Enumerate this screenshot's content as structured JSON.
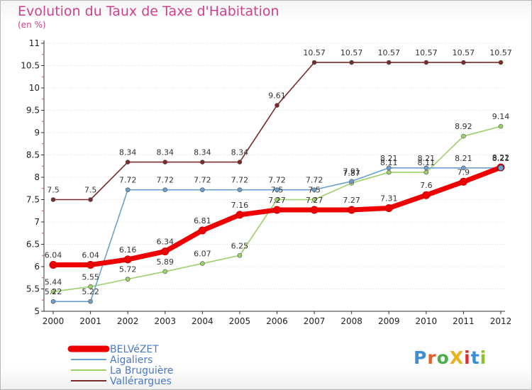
{
  "title": "Evolution du Taux de Taxe d'Habitation",
  "subtitle": "(en %)",
  "logo": {
    "text": "ProXiti",
    "letters": [
      "P",
      "r",
      "o",
      "X",
      "i",
      "t",
      "i"
    ],
    "colors": [
      "#3a8fd8",
      "#e85c2a",
      "#4aae4a",
      "#e8b21c",
      "#d83030",
      "#3a8fd8",
      "#8ac030"
    ]
  },
  "chart_data": {
    "type": "line",
    "title": "Evolution du Taux de Taxe d'Habitation",
    "subtitle": "(en %)",
    "x": [
      "2000",
      "2001",
      "2002",
      "2003",
      "2004",
      "2005",
      "2006",
      "2007",
      "2008",
      "2009",
      "2010",
      "2011",
      "2012"
    ],
    "ylim": [
      5,
      11
    ],
    "yticks": [
      "5",
      "5.5",
      "6",
      "6.5",
      "7",
      "7.5",
      "8",
      "8.5",
      "9",
      "9.5",
      "10",
      "10.5",
      "11"
    ],
    "legend_position": "bottom-left",
    "series": [
      {
        "name": "Vallérargues",
        "color": "#7a2a2a",
        "values": [
          7.5,
          7.5,
          8.34,
          8.34,
          8.34,
          8.34,
          9.61,
          10.57,
          10.57,
          10.57,
          10.57,
          10.57,
          10.57
        ],
        "labels": [
          "7.5",
          "7.5",
          "8.34",
          "8.34",
          "8.34",
          "8.34",
          "9.61",
          "10.57",
          "10.57",
          "10.57",
          "10.57",
          "10.57",
          "10.57"
        ]
      },
      {
        "name": "La Bruguière",
        "color": "#9dd06a",
        "values": [
          5.44,
          5.55,
          5.72,
          5.89,
          6.07,
          6.25,
          7.5,
          7.5,
          7.87,
          8.11,
          8.11,
          8.92,
          9.14
        ],
        "labels": [
          "5.44",
          "5.55",
          "5.72",
          "5.89",
          "6.07",
          "6.25",
          "7.5",
          "7.5",
          "7.87",
          "8.11",
          "8.11",
          "8.92",
          "9.14"
        ]
      },
      {
        "name": "Aigaliers",
        "color": "#6a9fcf",
        "values": [
          5.22,
          5.22,
          7.72,
          7.72,
          7.72,
          7.72,
          7.72,
          7.72,
          7.91,
          8.21,
          8.21,
          8.21,
          8.21
        ],
        "labels": [
          "5.22",
          "5.22",
          "7.72",
          "7.72",
          "7.72",
          "7.72",
          "7.72",
          "7.72",
          "7.91",
          "8.21",
          "8.21",
          "8.21",
          "8.21"
        ]
      },
      {
        "name": "BELVéZET",
        "color": "#ee0000",
        "values": [
          6.04,
          6.04,
          6.16,
          6.34,
          6.81,
          7.16,
          7.27,
          7.27,
          7.27,
          7.31,
          7.6,
          7.9,
          8.22
        ],
        "labels": [
          "6.04",
          "6.04",
          "6.16",
          "6.34",
          "6.81",
          "7.16",
          "7.27",
          "7.27",
          "7.27",
          "7.31",
          "7.6",
          "7.9",
          "8.22"
        ]
      }
    ],
    "legend": [
      "BELVéZET",
      "Aigaliers",
      "La Bruguière",
      "Vallérargues"
    ]
  }
}
